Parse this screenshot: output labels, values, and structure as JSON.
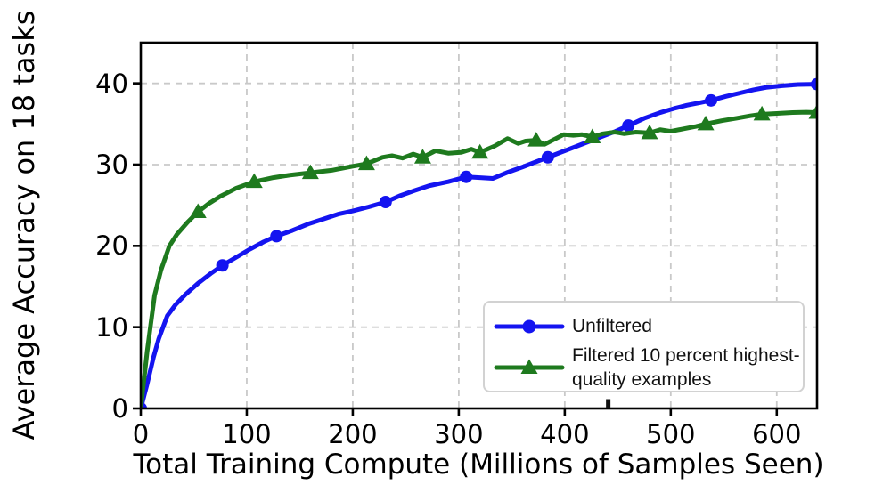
{
  "figure": {
    "background": "#ffffff",
    "frame_color": "#000000",
    "grid_color": "#c9c9c9"
  },
  "chart_data": {
    "type": "line",
    "title": "",
    "xlabel": "Total Training Compute (Millions of Samples Seen)",
    "ylabel": "Average Accuracy on 18 tasks",
    "xlim": [
      0,
      638
    ],
    "ylim": [
      0,
      45
    ],
    "xticks": [
      0,
      100,
      200,
      300,
      400,
      500,
      600
    ],
    "yticks": [
      0,
      10,
      20,
      30,
      40
    ],
    "grid": true,
    "grid_style": "dashed",
    "legend_position": "lower right",
    "stray_axis_notch_x": 441,
    "series": [
      {
        "name": "Unfiltered",
        "color": "#1414f0",
        "marker": "circle",
        "markers": [
          [
            0,
            0
          ],
          [
            77,
            17.6
          ],
          [
            128,
            21.2
          ],
          [
            231,
            25.4
          ],
          [
            307,
            28.5
          ],
          [
            384,
            30.9
          ],
          [
            460,
            34.8
          ],
          [
            538,
            37.9
          ],
          [
            638,
            39.9
          ]
        ],
        "line": [
          [
            0,
            0
          ],
          [
            6,
            3
          ],
          [
            12,
            6.3
          ],
          [
            17,
            8.6
          ],
          [
            25,
            11.4
          ],
          [
            33,
            12.8
          ],
          [
            42,
            14.0
          ],
          [
            54,
            15.4
          ],
          [
            66,
            16.6
          ],
          [
            77,
            17.6
          ],
          [
            90,
            18.6
          ],
          [
            103,
            19.6
          ],
          [
            116,
            20.5
          ],
          [
            128,
            21.2
          ],
          [
            143,
            21.9
          ],
          [
            158,
            22.7
          ],
          [
            172,
            23.3
          ],
          [
            186,
            23.9
          ],
          [
            200,
            24.3
          ],
          [
            215,
            24.8
          ],
          [
            231,
            25.4
          ],
          [
            245,
            26.2
          ],
          [
            258,
            26.8
          ],
          [
            272,
            27.4
          ],
          [
            290,
            27.9
          ],
          [
            307,
            28.5
          ],
          [
            320,
            28.4
          ],
          [
            332,
            28.3
          ],
          [
            345,
            29.0
          ],
          [
            360,
            29.7
          ],
          [
            372,
            30.3
          ],
          [
            384,
            30.9
          ],
          [
            398,
            31.6
          ],
          [
            412,
            32.3
          ],
          [
            424,
            32.9
          ],
          [
            436,
            33.5
          ],
          [
            448,
            34.1
          ],
          [
            460,
            34.8
          ],
          [
            475,
            35.7
          ],
          [
            490,
            36.4
          ],
          [
            503,
            36.9
          ],
          [
            515,
            37.3
          ],
          [
            527,
            37.6
          ],
          [
            538,
            37.9
          ],
          [
            552,
            38.4
          ],
          [
            565,
            38.8
          ],
          [
            578,
            39.2
          ],
          [
            590,
            39.5
          ],
          [
            605,
            39.7
          ],
          [
            620,
            39.85
          ],
          [
            638,
            39.9
          ]
        ]
      },
      {
        "name": "Filtered 10 percent highest-quality examples",
        "color": "#1e7a1e",
        "marker": "triangle",
        "markers": [
          [
            54,
            24.2
          ],
          [
            107,
            27.9
          ],
          [
            160,
            29.0
          ],
          [
            213,
            30.1
          ],
          [
            266,
            30.9
          ],
          [
            320,
            31.5
          ],
          [
            373,
            33.0
          ],
          [
            426,
            33.4
          ],
          [
            480,
            33.9
          ],
          [
            533,
            35.0
          ],
          [
            586,
            36.2
          ],
          [
            638,
            36.4
          ]
        ],
        "line": [
          [
            0,
            0
          ],
          [
            6,
            7
          ],
          [
            13,
            13.9
          ],
          [
            19,
            17.0
          ],
          [
            27,
            20.0
          ],
          [
            34,
            21.4
          ],
          [
            44,
            22.9
          ],
          [
            54,
            24.2
          ],
          [
            64,
            25.2
          ],
          [
            75,
            26.1
          ],
          [
            90,
            27.1
          ],
          [
            107,
            27.9
          ],
          [
            125,
            28.4
          ],
          [
            140,
            28.7
          ],
          [
            160,
            29.0
          ],
          [
            180,
            29.3
          ],
          [
            200,
            29.8
          ],
          [
            213,
            30.1
          ],
          [
            228,
            30.9
          ],
          [
            237,
            31.1
          ],
          [
            247,
            30.8
          ],
          [
            257,
            31.3
          ],
          [
            266,
            30.9
          ],
          [
            278,
            31.7
          ],
          [
            290,
            31.4
          ],
          [
            302,
            31.5
          ],
          [
            312,
            31.9
          ],
          [
            320,
            31.5
          ],
          [
            334,
            32.3
          ],
          [
            346,
            33.2
          ],
          [
            356,
            32.6
          ],
          [
            363,
            32.9
          ],
          [
            373,
            33.0
          ],
          [
            381,
            32.5
          ],
          [
            390,
            33.1
          ],
          [
            399,
            33.7
          ],
          [
            408,
            33.6
          ],
          [
            416,
            33.7
          ],
          [
            426,
            33.4
          ],
          [
            436,
            33.8
          ],
          [
            447,
            34.0
          ],
          [
            456,
            33.8
          ],
          [
            467,
            34.0
          ],
          [
            480,
            33.9
          ],
          [
            490,
            34.3
          ],
          [
            500,
            34.1
          ],
          [
            512,
            34.4
          ],
          [
            524,
            34.7
          ],
          [
            533,
            35.0
          ],
          [
            548,
            35.4
          ],
          [
            562,
            35.7
          ],
          [
            575,
            36.0
          ],
          [
            586,
            36.2
          ],
          [
            600,
            36.3
          ],
          [
            615,
            36.4
          ],
          [
            628,
            36.45
          ],
          [
            638,
            36.4
          ]
        ]
      }
    ]
  },
  "legend": {
    "border_color": "#d2d2d2",
    "items": [
      {
        "label": "Unfiltered"
      },
      {
        "lines": [
          "Filtered 10 percent highest-",
          "quality examples"
        ]
      }
    ]
  }
}
